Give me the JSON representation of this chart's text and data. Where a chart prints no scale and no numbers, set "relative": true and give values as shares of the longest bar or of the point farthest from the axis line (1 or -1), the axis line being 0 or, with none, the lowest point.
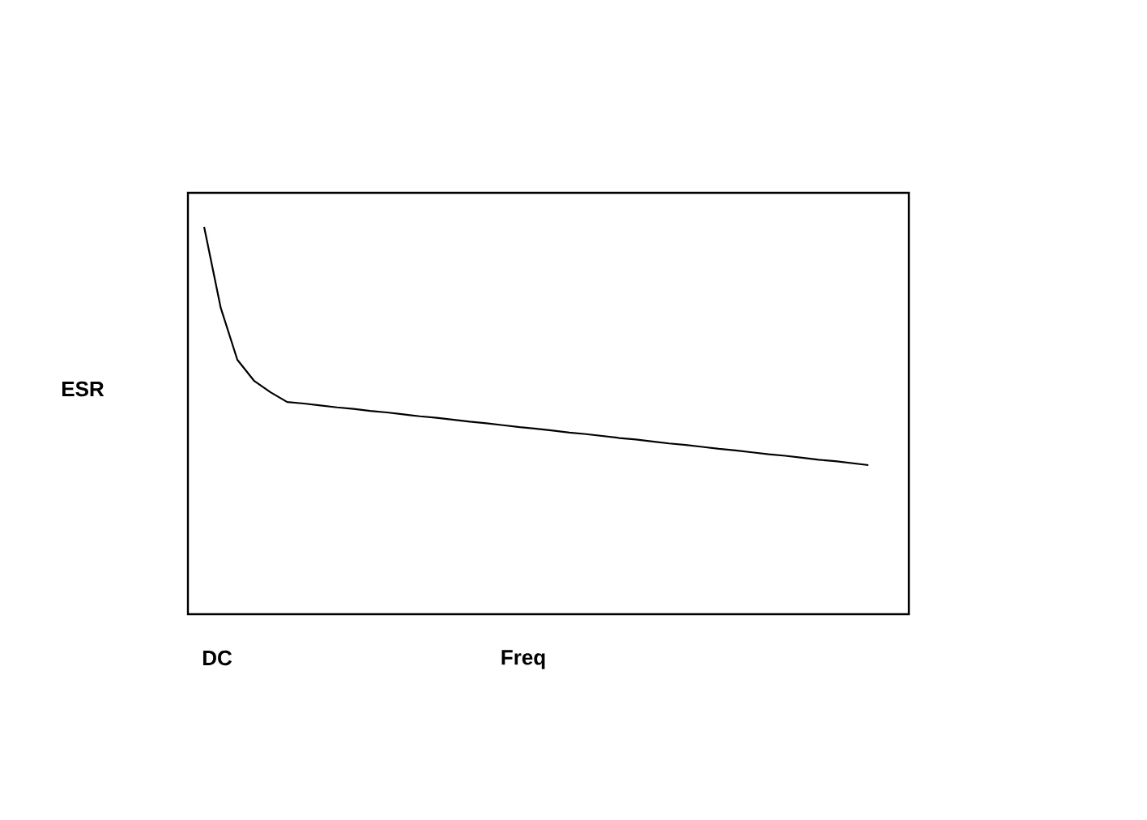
{
  "chart_data": {
    "type": "line",
    "relative": true,
    "xlabel": "Freq",
    "ylabel": "ESR",
    "annotations": [
      "DC"
    ],
    "marker": "none",
    "color": "#000000",
    "categories": [
      null,
      null,
      null,
      null,
      null,
      null,
      null,
      null,
      null,
      null,
      null,
      null,
      null,
      null,
      null,
      null,
      null,
      null,
      null,
      null,
      null,
      null,
      null,
      null,
      null,
      null,
      null,
      null,
      null,
      null,
      null,
      null,
      null,
      null,
      null,
      null,
      null,
      null,
      null,
      null,
      null
    ],
    "values": [
      1,
      0.791,
      0.657,
      0.603,
      0.573,
      0.548,
      0.544,
      0.539,
      0.534,
      0.53,
      0.525,
      0.521,
      0.516,
      0.511,
      0.507,
      0.502,
      0.497,
      0.493,
      0.488,
      0.483,
      0.479,
      0.474,
      0.469,
      0.465,
      0.46,
      0.455,
      0.451,
      0.446,
      0.441,
      0.437,
      0.432,
      0.427,
      0.423,
      0.418,
      0.413,
      0.409,
      0.404,
      0.399,
      0.395,
      0.39,
      0.385
    ]
  }
}
